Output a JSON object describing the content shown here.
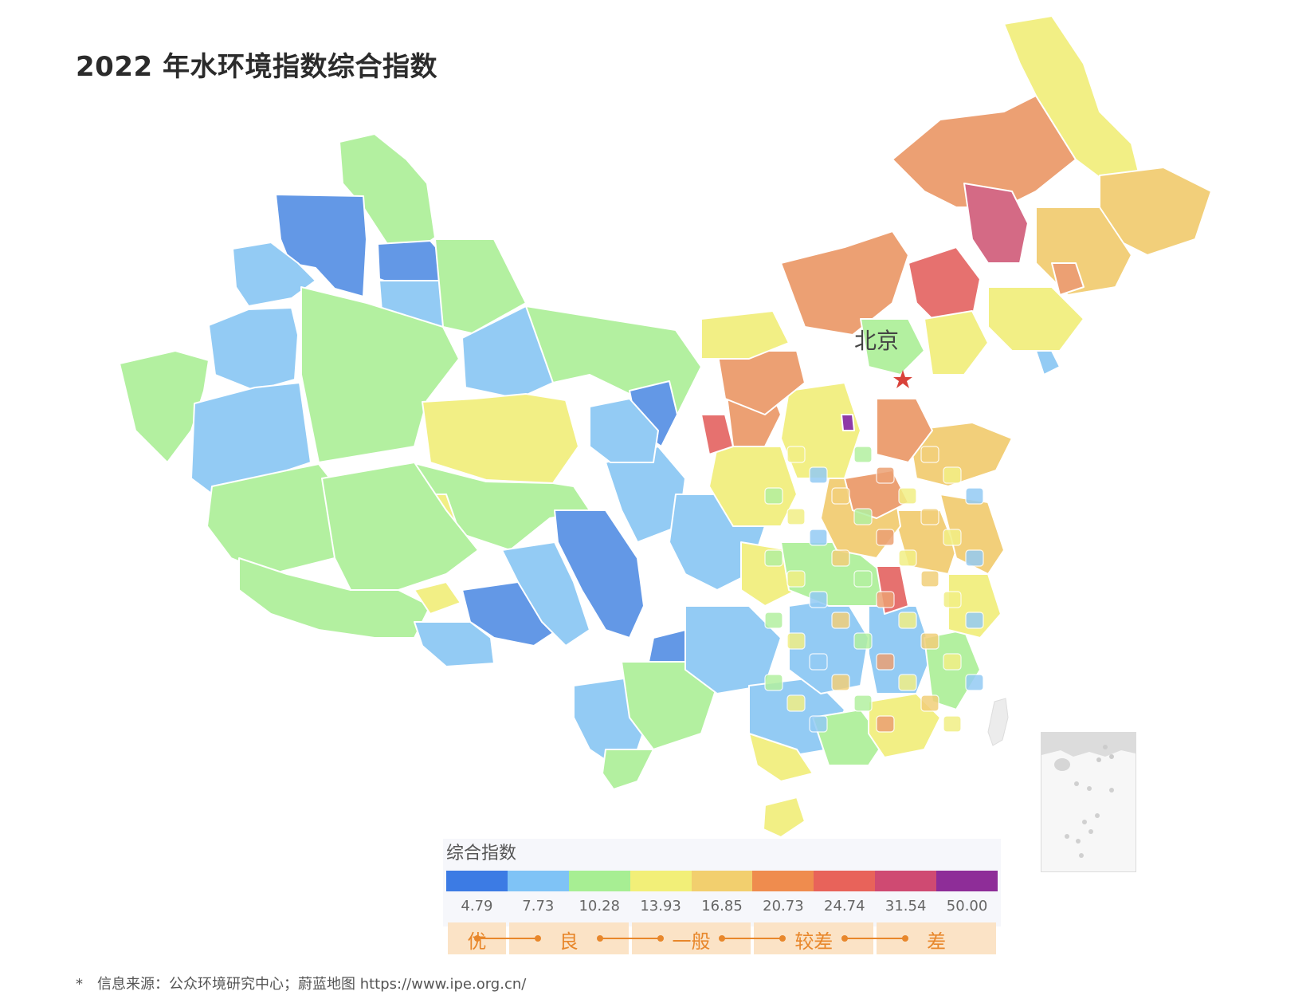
{
  "title": "2022 年水环境指数综合指数",
  "capital": {
    "label": "北京",
    "color": "#d9423a"
  },
  "legend": {
    "title": "综合指数",
    "colors": [
      "#3c7be4",
      "#7fc3f6",
      "#a7ee93",
      "#f2ef78",
      "#f2cf6e",
      "#ef8c4e",
      "#e8635a",
      "#cf4a72",
      "#8e2d98"
    ],
    "ticks": [
      "4.79",
      "7.73",
      "10.28",
      "13.93",
      "16.85",
      "20.73",
      "24.74",
      "31.54",
      "50.00"
    ],
    "grades": [
      "优",
      "良",
      "一般",
      "较差",
      "差"
    ],
    "grade_color": "#e8872b",
    "grade_bg": "#fbe3c6"
  },
  "map_colors": {
    "deep_blue": "#6398e6",
    "light_blue": "#93cbf4",
    "green": "#b3f0a0",
    "yellow": "#f2ef85",
    "light_orange": "#f2cf7a",
    "orange": "#eca073",
    "red": "#e6716f",
    "rose": "#d46a85",
    "purple": "#8e3aa7"
  },
  "footnote": {
    "marker": "*",
    "text": "信息来源：公众环境研究中心；蔚蓝地图 https://www.ipe.org.cn/"
  }
}
